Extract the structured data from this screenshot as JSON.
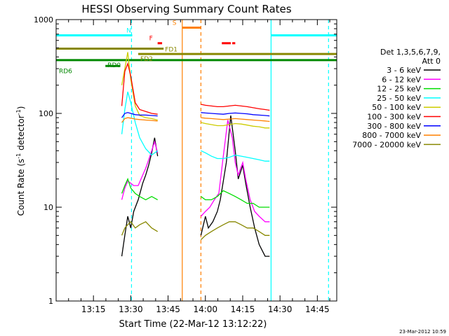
{
  "chart_data": {
    "type": "line",
    "title": "HESSI Observing Summary Count Rates",
    "xlabel": "Start Time (22-Mar-12 13:12:22)",
    "ylabel_main": "Count Rate (s",
    "ylabel_sup1": "-1",
    "ylabel_mid": " detector",
    "ylabel_sup2": "-1",
    "ylabel_end": ")",
    "yscale": "log",
    "ylim": [
      1,
      1000
    ],
    "xlim_minutes": [
      13.0,
      14.88
    ],
    "y_ticks": [
      {
        "value": 1,
        "label": "1"
      },
      {
        "value": 10,
        "label": "10"
      },
      {
        "value": 100,
        "label": "100"
      },
      {
        "value": 1000,
        "label": "1000"
      }
    ],
    "x_ticks": [
      {
        "value": 13.25,
        "label": "13:15"
      },
      {
        "value": 13.5,
        "label": "13:30"
      },
      {
        "value": 13.75,
        "label": "13:45"
      },
      {
        "value": 14.0,
        "label": "14:00"
      },
      {
        "value": 14.25,
        "label": "14:15"
      },
      {
        "value": 14.5,
        "label": "14:30"
      },
      {
        "value": 14.75,
        "label": "14:45"
      }
    ],
    "legend": {
      "header1": "Det 1,3,5,6,7,9,",
      "header2": "Att 0",
      "entries": [
        {
          "label": "3 - 6 keV",
          "color": "#000000"
        },
        {
          "label": "6 - 12 keV",
          "color": "#ff00ff"
        },
        {
          "label": "12 - 25 keV",
          "color": "#00dd00"
        },
        {
          "label": "25 - 50 keV",
          "color": "#00ffff"
        },
        {
          "label": "50 - 100 keV",
          "color": "#cccc00"
        },
        {
          "label": "100 - 300 keV",
          "color": "#ff0000"
        },
        {
          "label": "300 - 800 keV",
          "color": "#0000ff"
        },
        {
          "label": "800 - 7000 keV",
          "color": "#ff8000"
        },
        {
          "label": "7000 - 20000 keV",
          "color": "#888800"
        }
      ]
    },
    "series": [
      {
        "name": "3 - 6 keV",
        "color": "#000000",
        "segments": [
          [
            [
              13.44,
              3
            ],
            [
              13.46,
              5
            ],
            [
              13.48,
              8
            ],
            [
              13.5,
              6
            ],
            [
              13.52,
              9
            ],
            [
              13.55,
              12
            ],
            [
              13.58,
              18
            ],
            [
              13.6,
              22
            ],
            [
              13.62,
              28
            ],
            [
              13.64,
              38
            ],
            [
              13.66,
              55
            ],
            [
              13.68,
              35
            ]
          ],
          [
            [
              13.97,
              5
            ],
            [
              14.0,
              8
            ],
            [
              14.02,
              6
            ],
            [
              14.05,
              7
            ],
            [
              14.08,
              9
            ],
            [
              14.1,
              12
            ],
            [
              14.14,
              30
            ],
            [
              14.17,
              95
            ],
            [
              14.2,
              40
            ],
            [
              14.22,
              20
            ],
            [
              14.25,
              28
            ],
            [
              14.27,
              18
            ],
            [
              14.3,
              10
            ],
            [
              14.33,
              6
            ],
            [
              14.36,
              4
            ],
            [
              14.4,
              3
            ],
            [
              14.43,
              3
            ]
          ]
        ]
      },
      {
        "name": "6 - 12 keV",
        "color": "#ff00ff",
        "segments": [
          [
            [
              13.44,
              12
            ],
            [
              13.46,
              16
            ],
            [
              13.48,
              19
            ],
            [
              13.5,
              18
            ],
            [
              13.52,
              17
            ],
            [
              13.55,
              17
            ],
            [
              13.58,
              22
            ],
            [
              13.6,
              26
            ],
            [
              13.62,
              32
            ],
            [
              13.64,
              40
            ],
            [
              13.66,
              50
            ],
            [
              13.68,
              38
            ]
          ],
          [
            [
              13.97,
              8
            ],
            [
              14.0,
              9
            ],
            [
              14.03,
              10
            ],
            [
              14.06,
              12
            ],
            [
              14.09,
              14
            ],
            [
              14.12,
              35
            ],
            [
              14.15,
              85
            ],
            [
              14.18,
              55
            ],
            [
              14.2,
              30
            ],
            [
              14.22,
              22
            ],
            [
              14.25,
              30
            ],
            [
              14.27,
              20
            ],
            [
              14.3,
              12
            ],
            [
              14.33,
              9
            ],
            [
              14.36,
              8
            ],
            [
              14.4,
              7
            ],
            [
              14.43,
              7
            ]
          ]
        ]
      },
      {
        "name": "12 - 25 keV",
        "color": "#00dd00",
        "segments": [
          [
            [
              13.44,
              14
            ],
            [
              13.46,
              17
            ],
            [
              13.48,
              20
            ],
            [
              13.5,
              16
            ],
            [
              13.53,
              14
            ],
            [
              13.56,
              13
            ],
            [
              13.6,
              12
            ],
            [
              13.64,
              13
            ],
            [
              13.68,
              12
            ]
          ],
          [
            [
              13.97,
              13
            ],
            [
              14.0,
              12
            ],
            [
              14.04,
              12
            ],
            [
              14.08,
              13
            ],
            [
              14.12,
              15
            ],
            [
              14.16,
              14
            ],
            [
              14.2,
              13
            ],
            [
              14.24,
              12
            ],
            [
              14.28,
              11
            ],
            [
              14.32,
              11
            ],
            [
              14.36,
              10
            ],
            [
              14.4,
              10
            ],
            [
              14.43,
              10
            ]
          ]
        ]
      },
      {
        "name": "25 - 50 keV",
        "color": "#00ffff",
        "segments": [
          [
            [
              13.44,
              60
            ],
            [
              13.46,
              110
            ],
            [
              13.48,
              170
            ],
            [
              13.5,
              130
            ],
            [
              13.53,
              80
            ],
            [
              13.56,
              55
            ],
            [
              13.6,
              42
            ],
            [
              13.64,
              36
            ],
            [
              13.68,
              40
            ]
          ],
          [
            [
              13.97,
              40
            ],
            [
              14.0,
              38
            ],
            [
              14.04,
              35
            ],
            [
              14.08,
              33
            ],
            [
              14.12,
              33
            ],
            [
              14.16,
              34
            ],
            [
              14.2,
              36
            ],
            [
              14.24,
              35
            ],
            [
              14.28,
              34
            ],
            [
              14.32,
              33
            ],
            [
              14.36,
              32
            ],
            [
              14.4,
              31
            ],
            [
              14.43,
              31
            ]
          ]
        ]
      },
      {
        "name": "50 - 100 keV",
        "color": "#cccc00",
        "segments": [
          [
            [
              13.44,
              200
            ],
            [
              13.46,
              300
            ],
            [
              13.48,
              450
            ],
            [
              13.5,
              230
            ],
            [
              13.53,
              120
            ],
            [
              13.56,
              95
            ],
            [
              13.6,
              90
            ],
            [
              13.64,
              88
            ],
            [
              13.68,
              85
            ]
          ],
          [
            [
              13.97,
              80
            ],
            [
              14.0,
              78
            ],
            [
              14.04,
              76
            ],
            [
              14.08,
              74
            ],
            [
              14.12,
              74
            ],
            [
              14.16,
              76
            ],
            [
              14.2,
              78
            ],
            [
              14.24,
              77
            ],
            [
              14.28,
              75
            ],
            [
              14.32,
              73
            ],
            [
              14.36,
              72
            ],
            [
              14.4,
              70
            ],
            [
              14.43,
              70
            ]
          ]
        ]
      },
      {
        "name": "100 - 300 keV",
        "color": "#ff0000",
        "segments": [
          [
            [
              13.44,
              120
            ],
            [
              13.46,
              280
            ],
            [
              13.48,
              340
            ],
            [
              13.5,
              250
            ],
            [
              13.53,
              130
            ],
            [
              13.56,
              110
            ],
            [
              13.6,
              105
            ],
            [
              13.64,
              100
            ],
            [
              13.68,
              98
            ]
          ],
          [
            [
              13.97,
              125
            ],
            [
              14.0,
              122
            ],
            [
              14.04,
              120
            ],
            [
              14.08,
              118
            ],
            [
              14.12,
              118
            ],
            [
              14.16,
              120
            ],
            [
              14.2,
              122
            ],
            [
              14.24,
              120
            ],
            [
              14.28,
              118
            ],
            [
              14.32,
              115
            ],
            [
              14.36,
              112
            ],
            [
              14.4,
              110
            ],
            [
              14.43,
              108
            ]
          ]
        ]
      },
      {
        "name": "300 - 800 keV",
        "color": "#0000ff",
        "segments": [
          [
            [
              13.44,
              90
            ],
            [
              13.46,
              100
            ],
            [
              13.48,
              102
            ],
            [
              13.5,
              100
            ],
            [
              13.53,
              97
            ],
            [
              13.56,
              96
            ],
            [
              13.6,
              96
            ],
            [
              13.64,
              95
            ],
            [
              13.68,
              94
            ]
          ],
          [
            [
              13.97,
              102
            ],
            [
              14.0,
              101
            ],
            [
              14.04,
              100
            ],
            [
              14.08,
              99
            ],
            [
              14.12,
              98
            ],
            [
              14.16,
              100
            ],
            [
              14.2,
              101
            ],
            [
              14.24,
              100
            ],
            [
              14.28,
              99
            ],
            [
              14.32,
              97
            ],
            [
              14.36,
              96
            ],
            [
              14.4,
              95
            ],
            [
              14.43,
              94
            ]
          ]
        ]
      },
      {
        "name": "800 - 7000 keV",
        "color": "#ff8000",
        "segments": [
          [
            [
              13.44,
              80
            ],
            [
              13.46,
              88
            ],
            [
              13.48,
              90
            ],
            [
              13.5,
              89
            ],
            [
              13.53,
              87
            ],
            [
              13.56,
              86
            ],
            [
              13.6,
              85
            ],
            [
              13.64,
              84
            ],
            [
              13.68,
              83
            ]
          ],
          [
            [
              13.97,
              90
            ],
            [
              14.0,
              89
            ],
            [
              14.04,
              88
            ],
            [
              14.08,
              87
            ],
            [
              14.12,
              86
            ],
            [
              14.16,
              87
            ],
            [
              14.2,
              88
            ],
            [
              14.24,
              87
            ],
            [
              14.28,
              86
            ],
            [
              14.32,
              85
            ],
            [
              14.36,
              84
            ],
            [
              14.4,
              83
            ],
            [
              14.43,
              82
            ]
          ]
        ]
      },
      {
        "name": "7000 - 20000 keV",
        "color": "#888800",
        "segments": [
          [
            [
              13.44,
              5
            ],
            [
              13.46,
              6
            ],
            [
              13.48,
              6.5
            ],
            [
              13.5,
              7
            ],
            [
              13.53,
              6
            ],
            [
              13.56,
              6.5
            ],
            [
              13.6,
              7
            ],
            [
              13.64,
              6
            ],
            [
              13.68,
              5.5
            ]
          ],
          [
            [
              13.97,
              4.5
            ],
            [
              14.0,
              5
            ],
            [
              14.04,
              5.5
            ],
            [
              14.08,
              6
            ],
            [
              14.12,
              6.5
            ],
            [
              14.16,
              7
            ],
            [
              14.2,
              7
            ],
            [
              14.24,
              6.5
            ],
            [
              14.28,
              6
            ],
            [
              14.32,
              6
            ],
            [
              14.36,
              5.5
            ],
            [
              14.4,
              5
            ],
            [
              14.43,
              5
            ]
          ]
        ]
      }
    ],
    "vlines": [
      {
        "x": 13.505,
        "color": "#00ffff",
        "dash": true
      },
      {
        "x": 13.845,
        "color": "#ff8000",
        "dash": false
      },
      {
        "x": 13.97,
        "color": "#ff8000",
        "dash": true
      },
      {
        "x": 14.44,
        "color": "#00ffff",
        "dash": false
      },
      {
        "x": 14.825,
        "color": "#00ffff",
        "dash": true
      }
    ],
    "bars": [
      {
        "label": "N",
        "color": "#00ffff",
        "y": 680,
        "segments": [
          [
            13.0,
            13.51
          ],
          [
            14.44,
            14.88
          ]
        ]
      },
      {
        "label": "S",
        "color": "#ff8000",
        "y": 820,
        "segments": [
          [
            13.845,
            13.97
          ]
        ]
      },
      {
        "label": "F",
        "color": "#ff0000",
        "y": 560,
        "segments": [
          [
            13.68,
            13.71
          ]
        ]
      },
      {
        "label": "",
        "color": "#ff0000",
        "y": 560,
        "segments": [
          [
            14.11,
            14.17
          ],
          [
            14.18,
            14.2
          ]
        ]
      },
      {
        "label": "FD1",
        "color": "#888800",
        "y": 490,
        "segments": [
          [
            13.0,
            13.72
          ]
        ]
      },
      {
        "label": "FD2",
        "color": "#888800",
        "y": 430,
        "segments": [
          [
            13.55,
            14.88
          ]
        ]
      },
      {
        "label": "RD0",
        "color": "#008800",
        "y": 370,
        "segments": [
          [
            13.0,
            14.88
          ]
        ]
      },
      {
        "label": "RD6",
        "color": "#008800",
        "y": 320,
        "segments": [
          [
            13.33,
            13.43
          ]
        ]
      }
    ],
    "timestamp": "23-Mar-2012 10:59"
  }
}
